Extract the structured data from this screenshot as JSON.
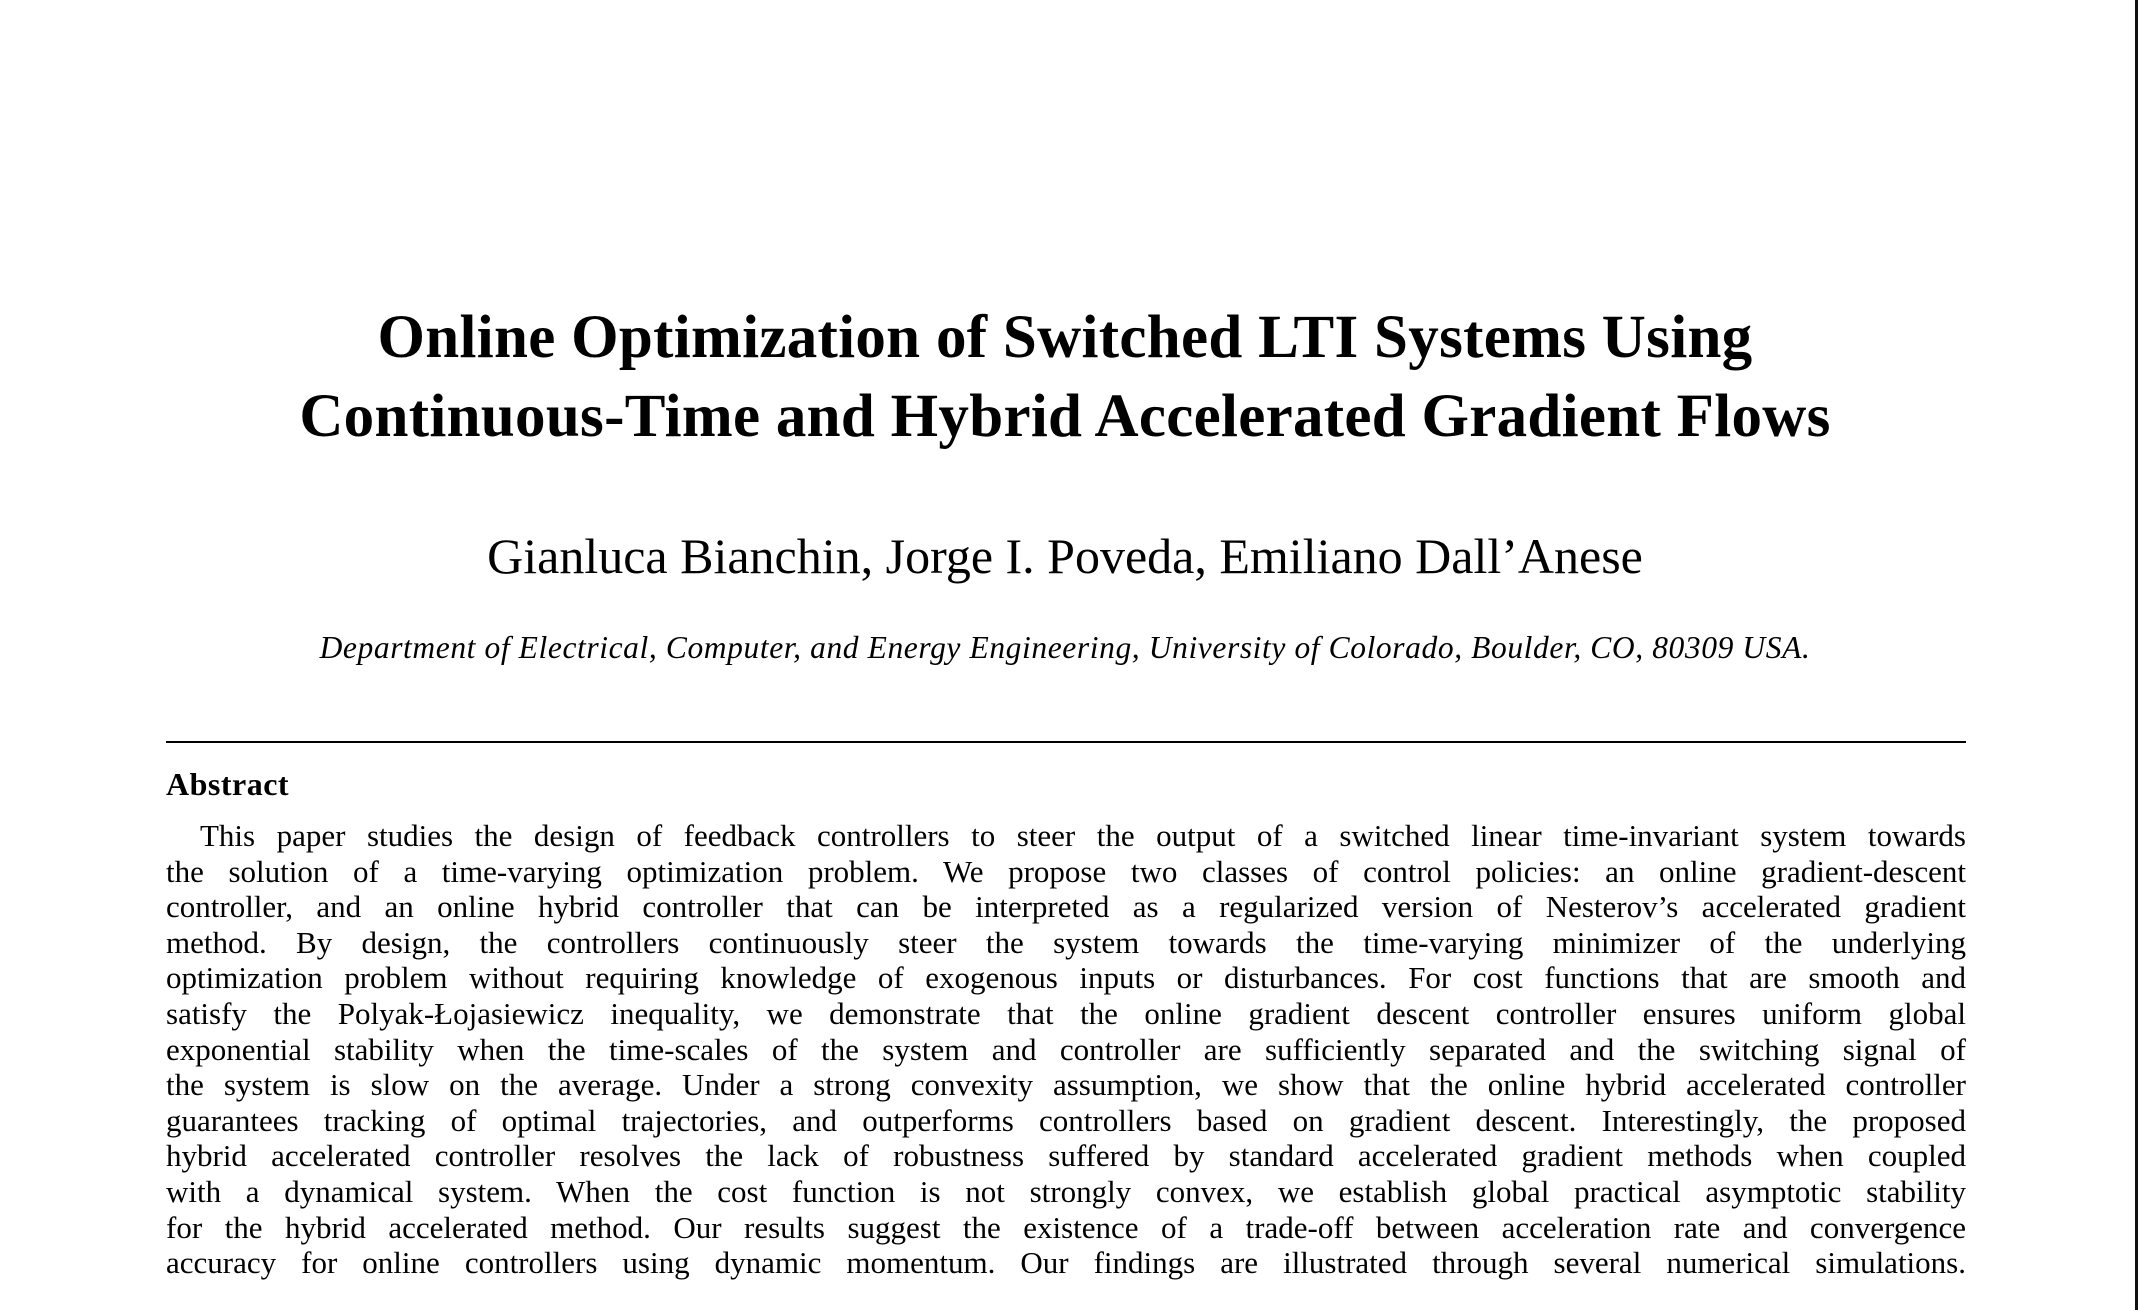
{
  "paper": {
    "title_lines": [
      "Online Optimization of Switched LTI Systems Using",
      "Continuous-Time and Hybrid Accelerated Gradient Flows"
    ],
    "authors": "Gianluca Bianchin, Jorge I. Poveda, Emiliano Dall’Anese",
    "affiliation": "Department of Electrical, Computer, and Energy Engineering, University of Colorado, Boulder, CO, 80309 USA.",
    "abstract_heading": "Abstract",
    "abstract_lines": [
      "This paper studies the design of feedback controllers to steer the output of a switched linear time-invariant system towards",
      "the solution of a time-varying optimization problem. We propose two classes of control policies: an online gradient-descent",
      "controller, and an online hybrid controller that can be interpreted as a regularized version of Nesterov’s accelerated gradient",
      "method. By design, the controllers continuously steer the system towards the time-varying minimizer of the underlying",
      "optimization problem without requiring knowledge of exogenous inputs or disturbances. For cost functions that are smooth and",
      "satisfy the Polyak-Łojasiewicz inequality, we demonstrate that the online gradient descent controller ensures uniform global",
      "exponential stability when the time-scales of the system and controller are sufficiently separated and the switching signal of",
      "the system is slow on the average. Under a strong convexity assumption, we show that the online hybrid accelerated controller",
      "guarantees tracking of optimal trajectories, and outperforms controllers based on gradient descent. Interestingly, the proposed",
      "hybrid accelerated controller resolves the lack of robustness suffered by standard accelerated gradient methods when coupled",
      "with a dynamical system. When the cost function is not strongly convex, we establish global practical asymptotic stability",
      "for the hybrid accelerated method. Our results suggest the existence of a trade-off between acceleration rate and convergence",
      "accuracy for online controllers using dynamic momentum. Our findings are illustrated through several numerical simulations."
    ]
  }
}
